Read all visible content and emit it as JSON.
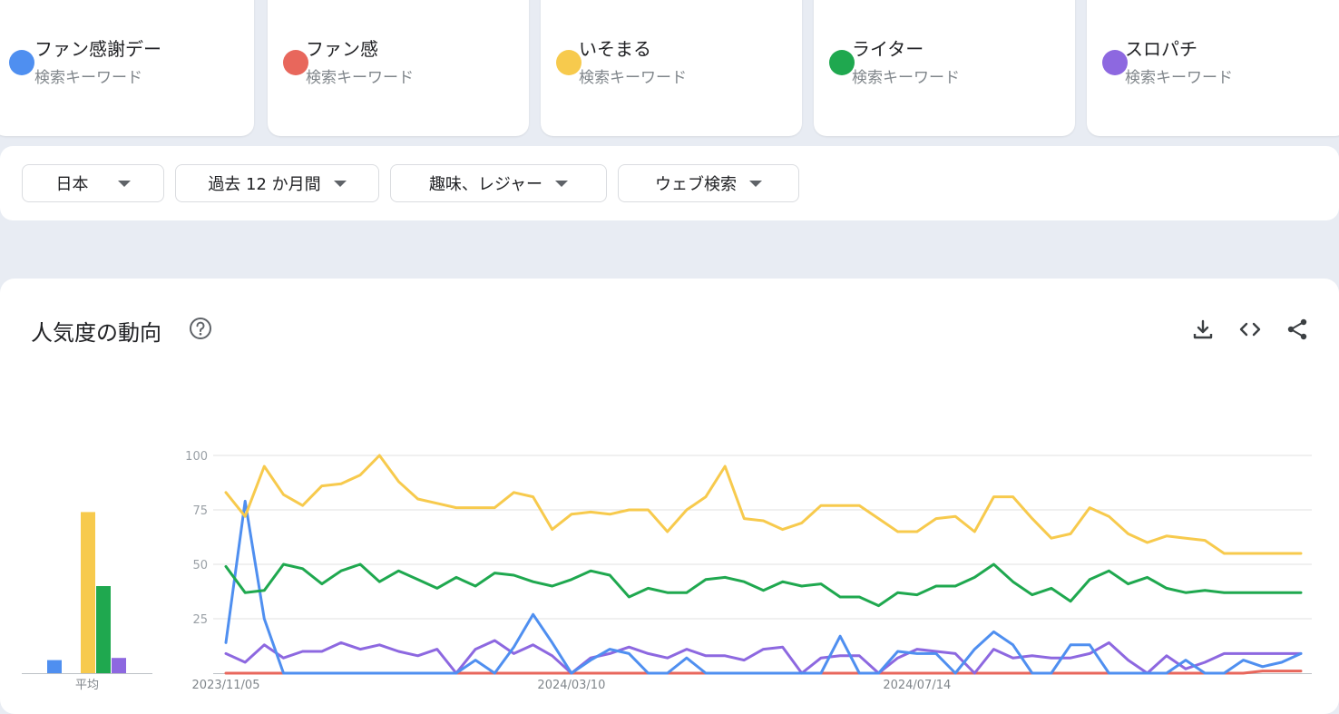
{
  "terms": [
    {
      "name": "ファン感謝デー",
      "sub": "検索キーワード",
      "color": "#4f8ff0"
    },
    {
      "name": "ファン感",
      "sub": "検索キーワード",
      "color": "#e8675c"
    },
    {
      "name": "いそまる",
      "sub": "検索キーワード",
      "color": "#f7ca4d"
    },
    {
      "name": "ライター",
      "sub": "検索キーワード",
      "color": "#1fa84f"
    },
    {
      "name": "スロパチ",
      "sub": "検索キーワード",
      "color": "#8d68e0"
    }
  ],
  "filters": [
    {
      "label": "日本"
    },
    {
      "label": "過去 12 か月間"
    },
    {
      "label": "趣味、レジャー"
    },
    {
      "label": "ウェブ検索"
    }
  ],
  "panel": {
    "title": "人気度の動向",
    "help_icon": "help-circle-icon",
    "tools": [
      "download-icon",
      "embed-code-icon",
      "share-icon"
    ]
  },
  "chart_data": [
    {
      "type": "bar",
      "title": "",
      "categories": [
        "平均"
      ],
      "series": [
        {
          "name": "ファン感謝デー",
          "values": [
            6
          ],
          "color": "#4f8ff0"
        },
        {
          "name": "ファン感",
          "values": [
            0
          ],
          "color": "#e8675c"
        },
        {
          "name": "いそまる",
          "values": [
            74
          ],
          "color": "#f7ca4d"
        },
        {
          "name": "ライター",
          "values": [
            40
          ],
          "color": "#1fa84f"
        },
        {
          "name": "スロパチ",
          "values": [
            7
          ],
          "color": "#8d68e0"
        }
      ],
      "ylim": [
        0,
        100
      ]
    },
    {
      "type": "line",
      "title": "",
      "x_start": "2023/11/05",
      "x_tick_labels": [
        "2023/11/05",
        "2024/03/10",
        "2024/07/14"
      ],
      "x_tick_index": [
        0,
        18,
        36
      ],
      "y_ticks": [
        25,
        50,
        75,
        100
      ],
      "ylim": [
        0,
        100
      ],
      "grid": true,
      "series": [
        {
          "name": "ファン感謝デー",
          "color": "#4f8ff0",
          "values": [
            14,
            79,
            25,
            0,
            0,
            0,
            0,
            0,
            0,
            0,
            0,
            0,
            0,
            6,
            0,
            12,
            27,
            14,
            0,
            6,
            11,
            9,
            0,
            0,
            7,
            0,
            0,
            0,
            0,
            0,
            0,
            0,
            17,
            0,
            0,
            10,
            9,
            9,
            0,
            11,
            19,
            13,
            0,
            0,
            13,
            13,
            0,
            0,
            0,
            0,
            6,
            0,
            0,
            6,
            3,
            5,
            9
          ]
        },
        {
          "name": "ファン感",
          "color": "#e8675c",
          "values": [
            0,
            0,
            0,
            0,
            0,
            0,
            0,
            0,
            0,
            0,
            0,
            0,
            0,
            0,
            0,
            0,
            0,
            0,
            0,
            0,
            0,
            0,
            0,
            0,
            0,
            0,
            0,
            0,
            0,
            0,
            0,
            0,
            0,
            0,
            0,
            0,
            0,
            0,
            0,
            0,
            0,
            0,
            0,
            0,
            0,
            0,
            0,
            0,
            0,
            0,
            0,
            0,
            0,
            0,
            1,
            1,
            1
          ]
        },
        {
          "name": "いそまる",
          "color": "#f7ca4d",
          "values": [
            83,
            72,
            95,
            82,
            77,
            86,
            87,
            91,
            100,
            88,
            80,
            78,
            76,
            76,
            76,
            83,
            81,
            66,
            73,
            74,
            73,
            75,
            75,
            65,
            75,
            81,
            95,
            71,
            70,
            66,
            69,
            77,
            77,
            77,
            71,
            65,
            65,
            71,
            72,
            65,
            81,
            81,
            71,
            62,
            64,
            76,
            72,
            64,
            60,
            63,
            62,
            61,
            55,
            55,
            55,
            55,
            55
          ]
        },
        {
          "name": "ライター",
          "color": "#1fa84f",
          "values": [
            49,
            37,
            38,
            50,
            48,
            41,
            47,
            50,
            42,
            47,
            43,
            39,
            44,
            40,
            46,
            45,
            42,
            40,
            43,
            47,
            45,
            35,
            39,
            37,
            37,
            43,
            44,
            42,
            38,
            42,
            40,
            41,
            35,
            35,
            31,
            37,
            36,
            40,
            40,
            44,
            50,
            42,
            36,
            39,
            33,
            43,
            47,
            41,
            44,
            39,
            37,
            38,
            37,
            37,
            37,
            37,
            37
          ]
        },
        {
          "name": "スロパチ",
          "color": "#8d68e0",
          "values": [
            9,
            5,
            13,
            7,
            10,
            10,
            14,
            11,
            13,
            10,
            8,
            11,
            0,
            11,
            15,
            9,
            13,
            8,
            0,
            7,
            9,
            12,
            9,
            7,
            11,
            8,
            8,
            6,
            11,
            12,
            0,
            7,
            8,
            8,
            0,
            7,
            11,
            10,
            9,
            0,
            11,
            7,
            8,
            7,
            7,
            9,
            14,
            6,
            0,
            8,
            2,
            5,
            9,
            9,
            9,
            9,
            9
          ]
        }
      ]
    }
  ]
}
